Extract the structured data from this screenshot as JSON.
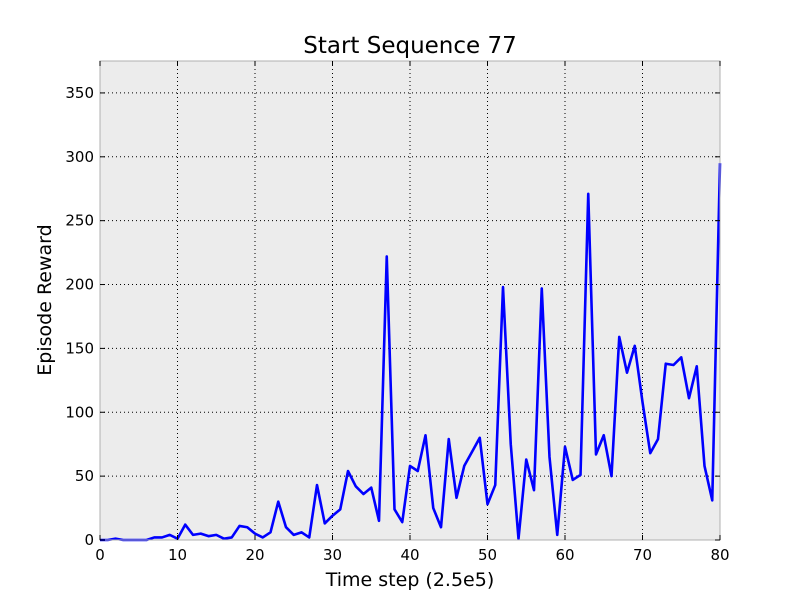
{
  "chart_data": {
    "type": "line",
    "title": "Start Sequence 77",
    "xlabel": "Time step (2.5e5)",
    "ylabel": "Episode Reward",
    "xlim": [
      0,
      80
    ],
    "ylim": [
      0,
      375
    ],
    "xticks": [
      0,
      10,
      20,
      30,
      40,
      50,
      60,
      70,
      80
    ],
    "yticks": [
      0,
      50,
      100,
      150,
      200,
      250,
      300,
      350
    ],
    "grid": true,
    "background": "#ececec",
    "series": [
      {
        "color": "#0000ff",
        "x": [
          0,
          1,
          2,
          3,
          4,
          5,
          6,
          7,
          8,
          9,
          10,
          11,
          12,
          13,
          14,
          15,
          16,
          17,
          18,
          19,
          20,
          21,
          22,
          23,
          24,
          25,
          26,
          27,
          28,
          29,
          30,
          31,
          32,
          33,
          34,
          35,
          36,
          37,
          38,
          39,
          40,
          41,
          42,
          43,
          44,
          45,
          46,
          47,
          48,
          49,
          50,
          51,
          52,
          53,
          54,
          55,
          56,
          57,
          58,
          59,
          60,
          61,
          62,
          63,
          64,
          65,
          66,
          67,
          68,
          69,
          70,
          71,
          72,
          73,
          74,
          75,
          76,
          77,
          78,
          79,
          80
        ],
        "y": [
          0,
          0,
          1,
          0,
          0,
          0,
          0,
          2,
          2,
          4,
          1,
          12,
          4,
          5,
          3,
          4,
          1,
          2,
          11,
          10,
          5,
          2,
          6,
          30,
          10,
          4,
          6,
          2,
          43,
          13,
          19,
          24,
          54,
          42,
          36,
          41,
          15,
          222,
          24,
          14,
          58,
          54,
          82,
          25,
          10,
          79,
          33,
          58,
          69,
          80,
          28,
          43,
          198,
          75,
          1,
          63,
          39,
          197,
          65,
          4,
          73,
          47,
          51,
          271,
          67,
          82,
          50,
          159,
          131,
          152,
          108,
          68,
          79,
          138,
          137,
          143,
          111,
          136,
          58,
          31,
          295
        ]
      }
    ]
  }
}
